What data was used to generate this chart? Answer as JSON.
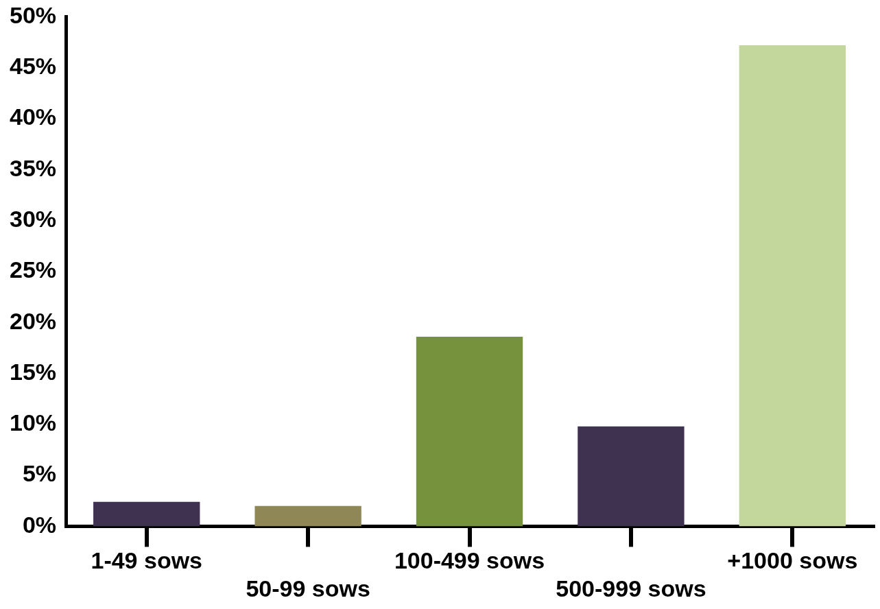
{
  "chart_data": {
    "type": "bar",
    "categories": [
      "1-49 sows",
      "50-99 sows",
      "100-499 sows",
      "500-999 sows",
      "+1000 sows"
    ],
    "values": [
      2.4,
      2.0,
      18.6,
      9.8,
      47.2
    ],
    "colors": [
      "#3f3150",
      "#8f8856",
      "#77923c",
      "#3f3150",
      "#c3d69b"
    ],
    "ylim": [
      0,
      50
    ],
    "yticks": [
      {
        "value": 0,
        "label": "0%"
      },
      {
        "value": 5,
        "label": "5%"
      },
      {
        "value": 10,
        "label": "10%"
      },
      {
        "value": 15,
        "label": "15%"
      },
      {
        "value": 20,
        "label": "20%"
      },
      {
        "value": 25,
        "label": "25%"
      },
      {
        "value": 30,
        "label": "30%"
      },
      {
        "value": 35,
        "label": "35%"
      },
      {
        "value": 40,
        "label": "40%"
      },
      {
        "value": 45,
        "label": "45%"
      },
      {
        "value": 50,
        "label": "50%"
      }
    ],
    "grid": false,
    "legend": false
  }
}
